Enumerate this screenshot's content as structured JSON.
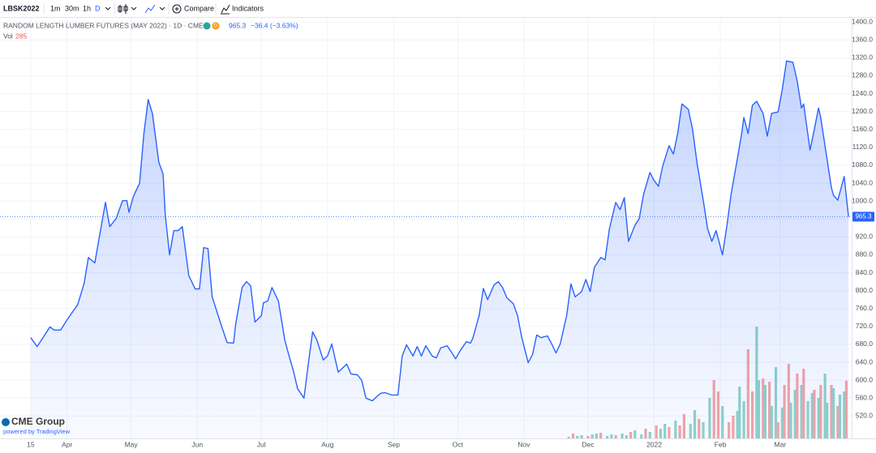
{
  "toolbar": {
    "symbol": "LBSK2022",
    "intervals": [
      "1m",
      "30m",
      "1h",
      "D"
    ],
    "compare": "Compare",
    "indicators": "Indicators"
  },
  "legend": {
    "title": "RANDOM LENGTH LUMBER FUTURES (MAY 2022) · 1D · CME",
    "badge": "D",
    "price": 965.3,
    "change": "−36.4 (−3.63%)",
    "vol_label": "Vol",
    "vol_value": 285
  },
  "footer": {
    "brand": "CME Group",
    "powered": "powered by TradingView"
  },
  "chart_data": {
    "type": "area",
    "series": [
      {
        "color": "#2962ff",
        "x": [
          0,
          3,
          9,
          11,
          14,
          17,
          22,
          25,
          27,
          30,
          32,
          35,
          37,
          40,
          43,
          45,
          46,
          48,
          51,
          53,
          55,
          57,
          60,
          62,
          63,
          65,
          67,
          69,
          71,
          74,
          77,
          79,
          81,
          83,
          85,
          89,
          92,
          95,
          96,
          99,
          101,
          103,
          105,
          108,
          109,
          111,
          113,
          116,
          119,
          121,
          123,
          125,
          128,
          130,
          132,
          134,
          137,
          139,
          141,
          144,
          146,
          148,
          150,
          153,
          155,
          157,
          160,
          162,
          164,
          166,
          169,
          172,
          174,
          176,
          179,
          181,
          183,
          185,
          188,
          190,
          192,
          195,
          197,
          199,
          201,
          204,
          206,
          207,
          210,
          212,
          214,
          217,
          219,
          221,
          223,
          226,
          228,
          230,
          233,
          235,
          237,
          239,
          242,
          244,
          246,
          248,
          251,
          253,
          255,
          258,
          260,
          262,
          264,
          267,
          269,
          271,
          274,
          276,
          278,
          280,
          283,
          285,
          287,
          290,
          292,
          294,
          296,
          299,
          301,
          303,
          305,
          308,
          310,
          312,
          315,
          317,
          319,
          321,
          324,
          326,
          328,
          331,
          333,
          334,
          336,
          338,
          340,
          343,
          345,
          347,
          350,
          352,
          354,
          357,
          359,
          361,
          362,
          365,
          367,
          369,
          370,
          372,
          375,
          376,
          378,
          381,
          383
        ],
        "values": [
          695,
          675,
          719,
          712,
          712,
          735,
          769,
          816,
          874,
          862,
          916,
          997,
          943,
          961,
          1001,
          1001,
          975,
          1010,
          1040,
          1151,
          1227,
          1196,
          1087,
          1060,
          970,
          880,
          934,
          934,
          943,
          834,
          804,
          804,
          896,
          894,
          786,
          726,
          684,
          683,
          726,
          807,
          820,
          811,
          730,
          744,
          773,
          777,
          807,
          777,
          690,
          654,
          621,
          581,
          560,
          636,
          708,
          690,
          645,
          654,
          681,
          618,
          627,
          636,
          614,
          612,
          600,
          560,
          554,
          563,
          571,
          572,
          567,
          567,
          654,
          679,
          654,
          675,
          654,
          677,
          654,
          650,
          672,
          677,
          663,
          648,
          665,
          686,
          683,
          693,
          744,
          805,
          780,
          813,
          820,
          807,
          784,
          771,
          744,
          695,
          639,
          657,
          701,
          695,
          699,
          681,
          661,
          681,
          744,
          815,
          786,
          798,
          825,
          798,
          852,
          874,
          869,
          937,
          997,
          981,
          1008,
          910,
          946,
          961,
          1015,
          1064,
          1046,
          1033,
          1078,
          1124,
          1105,
          1151,
          1217,
          1205,
          1160,
          1087,
          1001,
          939,
          910,
          934,
          880,
          943,
          1015,
          1096,
          1151,
          1187,
          1151,
          1214,
          1223,
          1196,
          1145,
          1196,
          1199,
          1250,
          1313,
          1310,
          1268,
          1208,
          1217,
          1114,
          1160,
          1208,
          1187,
          1124,
          1030,
          1013,
          1002,
          1055,
          965.3
        ]
      }
    ],
    "volume": {
      "axis": "y2",
      "x": [
        252,
        254,
        256,
        258,
        261,
        263,
        265,
        267,
        270,
        272,
        274,
        277,
        279,
        281,
        283,
        286,
        288,
        290,
        293,
        295,
        297,
        299,
        302,
        304,
        306,
        309,
        311,
        313,
        315,
        318,
        320,
        322,
        324,
        327,
        329,
        331,
        332,
        334,
        336,
        338,
        340,
        341,
        343,
        344,
        346,
        347,
        349,
        350,
        352,
        353,
        355,
        356,
        358,
        359,
        361,
        362,
        364,
        366,
        367,
        369,
        370,
        372,
        373,
        375,
        376,
        378,
        379,
        381,
        382
      ],
      "values": [
        8,
        24,
        12,
        16,
        12,
        20,
        24,
        28,
        12,
        20,
        16,
        24,
        16,
        32,
        40,
        20,
        48,
        32,
        64,
        48,
        72,
        56,
        88,
        64,
        120,
        72,
        140,
        96,
        80,
        200,
        288,
        232,
        160,
        80,
        112,
        136,
        256,
        184,
        440,
        232,
        552,
        288,
        296,
        264,
        280,
        160,
        352,
        80,
        152,
        264,
        368,
        176,
        240,
        320,
        264,
        344,
        184,
        224,
        240,
        200,
        264,
        320,
        176,
        264,
        248,
        160,
        216,
        232,
        285
      ],
      "colors": [
        "#8fd3c9",
        "#f5a5a5",
        "#8fd3c9",
        "#8fd3c9",
        "#f5a5a5",
        "#8fd3c9",
        "#8fd3c9",
        "#f5a5a5",
        "#8fd3c9",
        "#8fd3c9",
        "#f5a5a5",
        "#8fd3c9",
        "#8fd3c9",
        "#f5a5a5",
        "#8fd3c9",
        "#8fd3c9",
        "#f5a5a5",
        "#8fd3c9",
        "#f5a5a5",
        "#8fd3c9",
        "#8fd3c9",
        "#f5a5a5",
        "#8fd3c9",
        "#f5a5a5",
        "#f5a5a5",
        "#8fd3c9",
        "#8fd3c9",
        "#f5a5a5",
        "#8fd3c9",
        "#8fd3c9",
        "#f5a5a5",
        "#f5a5a5",
        "#8fd3c9",
        "#f5a5a5",
        "#f5a5a5",
        "#8fd3c9",
        "#8fd3c9",
        "#8fd3c9",
        "#f5a5a5",
        "#f5a5a5",
        "#8fd3c9",
        "#8fd3c9",
        "#f5a5a5",
        "#8fd3c9",
        "#f5a5a5",
        "#8fd3c9",
        "#8fd3c9",
        "#f5a5a5",
        "#8fd3c9",
        "#f5a5a5",
        "#f5a5a5",
        "#8fd3c9",
        "#8fd3c9",
        "#f5a5a5",
        "#8fd3c9",
        "#f5a5a5",
        "#8fd3c9",
        "#8fd3c9",
        "#f5a5a5",
        "#8fd3c9",
        "#f5a5a5",
        "#8fd3c9",
        "#8fd3c9",
        "#f5a5a5",
        "#8fd3c9",
        "#f5a5a5",
        "#8fd3c9",
        "#8fd3c9",
        "#f5a5a5"
      ]
    },
    "xlim": [
      -14.4,
      384.5
    ],
    "xticks": [
      {
        "value": 0,
        "label": "15"
      },
      {
        "value": 17,
        "label": "Apr"
      },
      {
        "value": 47,
        "label": "May"
      },
      {
        "value": 78,
        "label": "Jun"
      },
      {
        "value": 108,
        "label": "Jul"
      },
      {
        "value": 139,
        "label": "Aug"
      },
      {
        "value": 170,
        "label": "Sep"
      },
      {
        "value": 200,
        "label": "Oct"
      },
      {
        "value": 231,
        "label": "Nov"
      },
      {
        "value": 261,
        "label": "Dec"
      },
      {
        "value": 292,
        "label": "2022"
      },
      {
        "value": 323,
        "label": "Feb"
      },
      {
        "value": 351,
        "label": "Mar"
      }
    ],
    "ylim": [
      470,
      1413
    ],
    "yticks": [
      {
        "value": 520,
        "label": "520.0"
      },
      {
        "value": 560,
        "label": "560.0"
      },
      {
        "value": 600,
        "label": "600.0"
      },
      {
        "value": 640,
        "label": "640.0"
      },
      {
        "value": 680,
        "label": "680.0"
      },
      {
        "value": 720,
        "label": "720.0"
      },
      {
        "value": 760,
        "label": "760.0"
      },
      {
        "value": 800,
        "label": "800.0"
      },
      {
        "value": 840,
        "label": "840.0"
      },
      {
        "value": 880,
        "label": "880.0"
      },
      {
        "value": 920,
        "label": "920.0"
      },
      {
        "value": 960,
        "label": "960.0"
      },
      {
        "value": 1000,
        "label": "1000.0"
      },
      {
        "value": 1040,
        "label": "1040.0"
      },
      {
        "value": 1080,
        "label": "1080.0"
      },
      {
        "value": 1120,
        "label": "1120.0"
      },
      {
        "value": 1160,
        "label": "1160.0"
      },
      {
        "value": 1200,
        "label": "1200.0"
      },
      {
        "value": 1240,
        "label": "1240.0"
      },
      {
        "value": 1280,
        "label": "1280.0"
      },
      {
        "value": 1320,
        "label": "1320.0"
      },
      {
        "value": 1360,
        "label": "1360.0"
      },
      {
        "value": 1400,
        "label": "1400.0"
      }
    ],
    "y2lim": [
      0,
      700
    ],
    "grid": true
  }
}
